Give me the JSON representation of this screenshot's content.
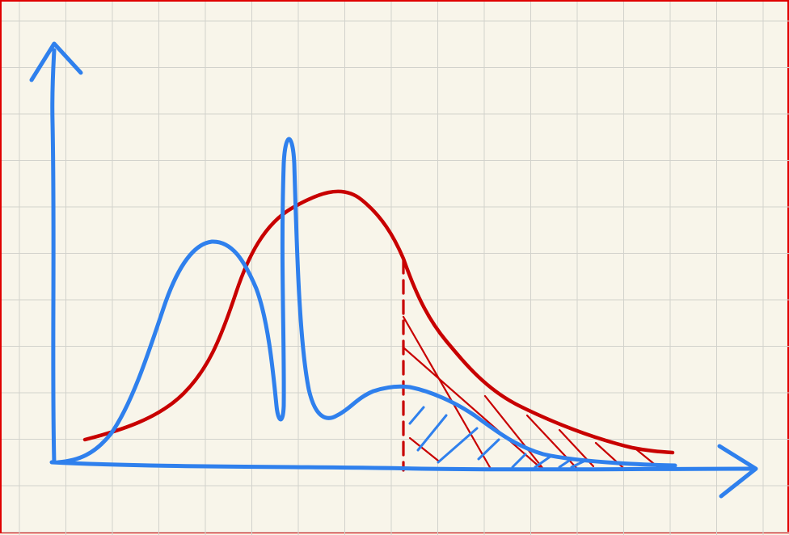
{
  "sketch": {
    "kind": "hand-drawn sketch on grid paper",
    "background_color": "#f8f5ea",
    "grid_color": "#d2d2cc",
    "frame_color": "#e00000",
    "axes_color": "#2f80ed",
    "curves": [
      {
        "name": "blue-multimodal-density",
        "color": "#2f80ed"
      },
      {
        "name": "red-smooth-density",
        "color": "#c80000"
      }
    ],
    "threshold_line_color": "#c80000",
    "shaded_tail_hatching": [
      "#c80000",
      "#2f80ed"
    ]
  }
}
